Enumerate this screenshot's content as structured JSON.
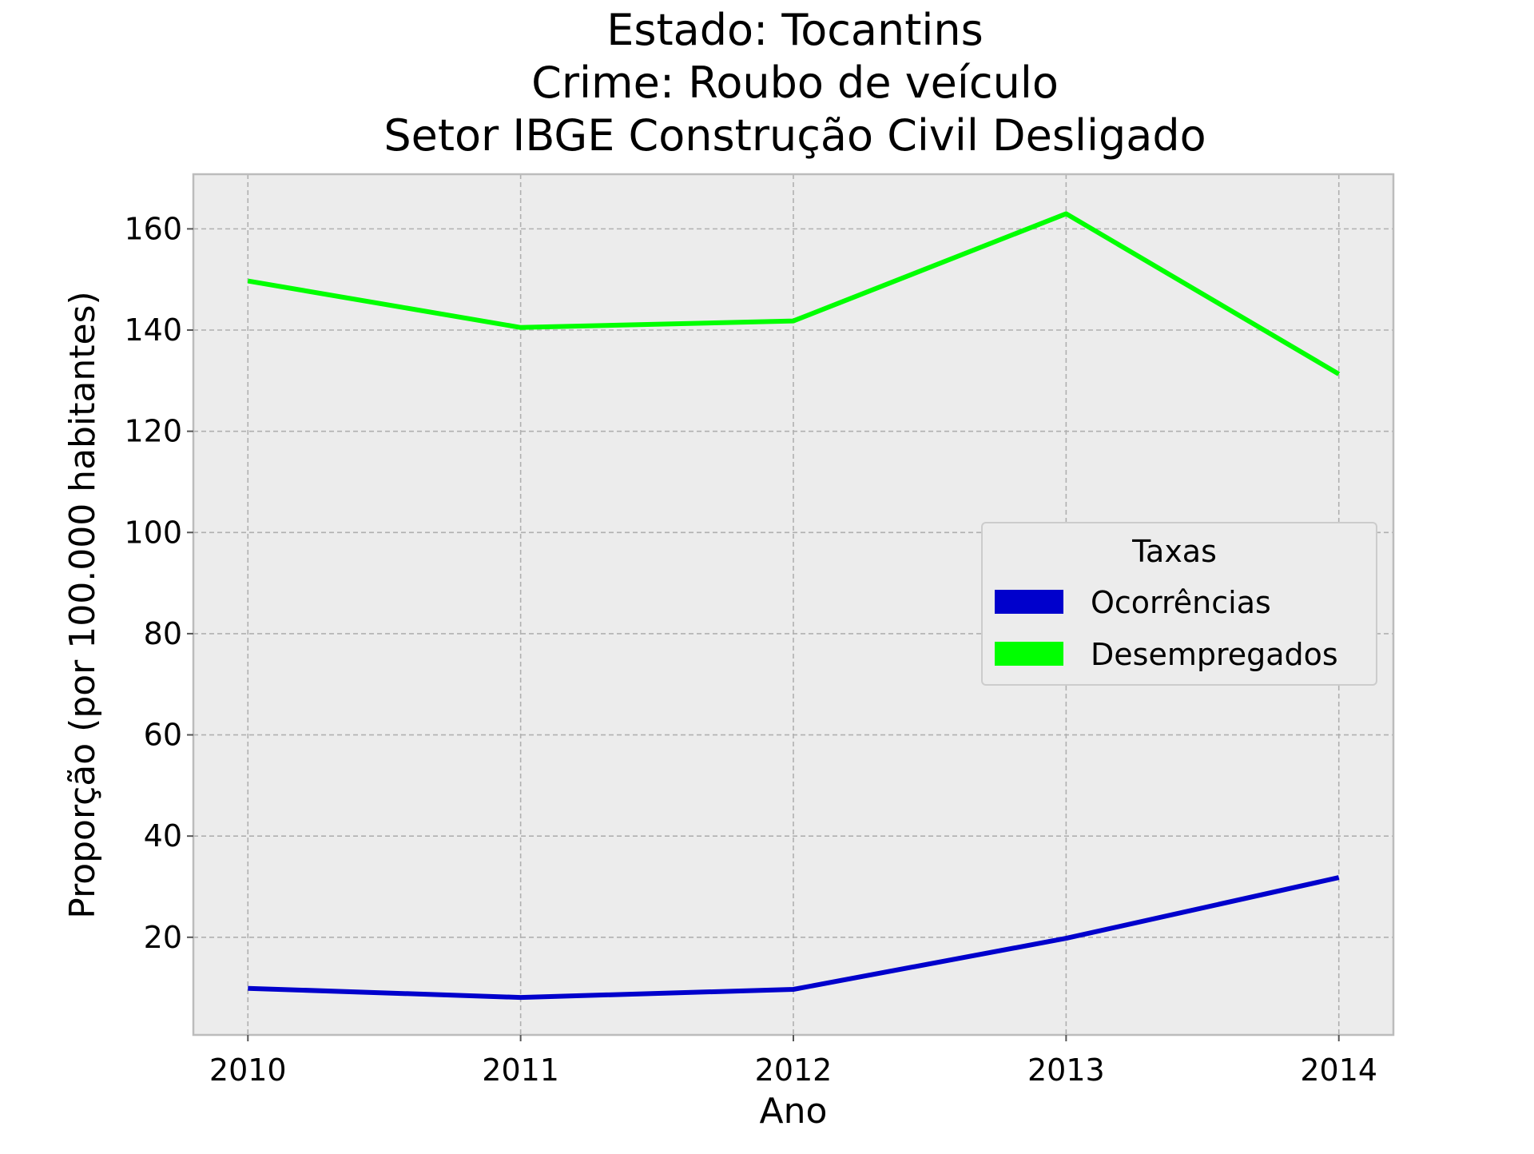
{
  "chart_data": {
    "type": "line",
    "title_lines": [
      "Estado: Tocantins",
      "Crime: Roubo de veículo",
      "Setor IBGE  Construção Civil   Desligado"
    ],
    "xlabel": "Ano",
    "ylabel": "Proporção (por 100.000 habitantes)",
    "x": [
      2010,
      2011,
      2012,
      2013,
      2014
    ],
    "x_ticks": [
      "2010",
      "2011",
      "2012",
      "2013",
      "2014"
    ],
    "y_ticks": [
      20,
      40,
      60,
      80,
      100,
      120,
      140,
      160
    ],
    "xlim": [
      2009.8,
      2014.2
    ],
    "ylim": [
      0.7,
      170.8
    ],
    "grid": true,
    "legend": {
      "title": "Taxas",
      "placement": "center-right"
    },
    "series": [
      {
        "name": "Ocorrências",
        "color": "#0000cc",
        "values": [
          9.9,
          8.1,
          9.7,
          19.8,
          31.8
        ]
      },
      {
        "name": "Desempregados",
        "color": "#00ff00",
        "values": [
          149.7,
          140.5,
          141.8,
          163.0,
          131.3
        ]
      }
    ],
    "colors": {
      "plot_background": "#ececec",
      "grid": "#b0b0b0",
      "frame": "#bcbcbc"
    }
  }
}
